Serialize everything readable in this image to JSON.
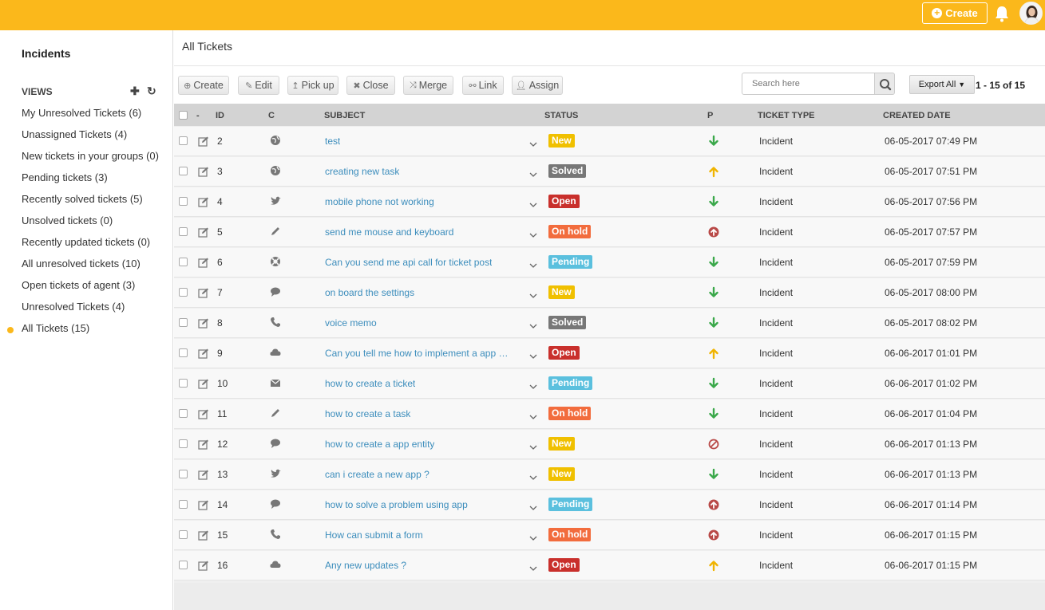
{
  "topbar": {
    "create_label": "Create",
    "accent": "#fbb81b"
  },
  "sidebar": {
    "title": "Incidents",
    "views_label": "VIEWS",
    "items": [
      {
        "label": "My Unresolved Tickets (6)"
      },
      {
        "label": "Unassigned Tickets (4)"
      },
      {
        "label": "New tickets in your groups (0)"
      },
      {
        "label": "Pending tickets (3)"
      },
      {
        "label": "Recently solved tickets (5)"
      },
      {
        "label": "Unsolved tickets (0)"
      },
      {
        "label": "Recently updated tickets (0)"
      },
      {
        "label": "All unresolved tickets (10)"
      },
      {
        "label": "Open tickets of agent (3)"
      },
      {
        "label": "Unresolved Tickets (4)"
      },
      {
        "label": "All Tickets (15)",
        "active": true
      }
    ]
  },
  "main": {
    "title": "All Tickets",
    "toolbar": {
      "create": "Create",
      "edit": "Edit",
      "pickup": "Pick up",
      "close": "Close",
      "merge": "Merge",
      "link": "Link",
      "assign": "Assign"
    },
    "search": {
      "placeholder": "Search here"
    },
    "export_label": "Export All",
    "pager": "1 - 15 of 15",
    "columns": {
      "dash": "-",
      "id": "ID",
      "c": "C",
      "subject": "SUBJECT",
      "status": "STATUS",
      "p": "P",
      "type": "TICKET TYPE",
      "created": "CREATED DATE"
    }
  },
  "status_colors": {
    "New": "#f0c000",
    "Solved": "#777777",
    "Open": "#c9302c",
    "On hold": "#f26c3d",
    "Pending": "#5bc0de"
  },
  "tickets": [
    {
      "id": "2",
      "channel": "globe-icon",
      "subject": "test",
      "status": "New",
      "priority": "low-arrow-down-icon",
      "type": "Incident",
      "created": "06-05-2017 07:49 PM"
    },
    {
      "id": "3",
      "channel": "globe-icon",
      "subject": "creating new task",
      "status": "Solved",
      "priority": "medium-arrow-up-icon",
      "type": "Incident",
      "created": "06-05-2017 07:51 PM"
    },
    {
      "id": "4",
      "channel": "twitter-icon",
      "subject": "mobile phone not working",
      "status": "Open",
      "priority": "low-arrow-down-icon",
      "type": "Incident",
      "created": "06-05-2017 07:56 PM"
    },
    {
      "id": "5",
      "channel": "pencil-icon",
      "subject": "send me mouse and keyboard",
      "status": "On hold",
      "priority": "high-circle-up-icon",
      "type": "Incident",
      "created": "06-05-2017 07:57 PM"
    },
    {
      "id": "6",
      "channel": "support-icon",
      "subject": "Can you send me api call for ticket post",
      "status": "Pending",
      "priority": "low-arrow-down-icon",
      "type": "Incident",
      "created": "06-05-2017 07:59 PM"
    },
    {
      "id": "7",
      "channel": "chat-icon",
      "subject": "on board the settings",
      "status": "New",
      "priority": "low-arrow-down-icon",
      "type": "Incident",
      "created": "06-05-2017 08:00 PM"
    },
    {
      "id": "8",
      "channel": "phone-icon",
      "subject": "voice memo",
      "status": "Solved",
      "priority": "low-arrow-down-icon",
      "type": "Incident",
      "created": "06-05-2017 08:02 PM"
    },
    {
      "id": "9",
      "channel": "cloud-icon",
      "subject": "Can you tell me how to implement a app …",
      "status": "Open",
      "priority": "medium-arrow-up-icon",
      "type": "Incident",
      "created": "06-06-2017 01:01 PM"
    },
    {
      "id": "10",
      "channel": "envelope-icon",
      "subject": "how to create a ticket",
      "status": "Pending",
      "priority": "low-arrow-down-icon",
      "type": "Incident",
      "created": "06-06-2017 01:02 PM"
    },
    {
      "id": "11",
      "channel": "pencil-icon",
      "subject": "how to create a task",
      "status": "On hold",
      "priority": "low-arrow-down-icon",
      "type": "Incident",
      "created": "06-06-2017 01:04 PM"
    },
    {
      "id": "12",
      "channel": "chat-icon",
      "subject": "how to create a app entity",
      "status": "New",
      "priority": "urgent-ban-icon",
      "type": "Incident",
      "created": "06-06-2017 01:13 PM"
    },
    {
      "id": "13",
      "channel": "twitter-icon",
      "subject": "can i create a new app ?",
      "status": "New",
      "priority": "low-arrow-down-icon",
      "type": "Incident",
      "created": "06-06-2017 01:13 PM"
    },
    {
      "id": "14",
      "channel": "chat-icon",
      "subject": "how to solve a problem using app",
      "status": "Pending",
      "priority": "high-circle-up-icon",
      "type": "Incident",
      "created": "06-06-2017 01:14 PM"
    },
    {
      "id": "15",
      "channel": "phone-icon",
      "subject": "How can submit a form",
      "status": "On hold",
      "priority": "high-circle-up-icon",
      "type": "Incident",
      "created": "06-06-2017 01:15 PM"
    },
    {
      "id": "16",
      "channel": "cloud-icon",
      "subject": "Any new updates ?",
      "status": "Open",
      "priority": "medium-arrow-up-icon",
      "type": "Incident",
      "created": "06-06-2017 01:15 PM"
    }
  ]
}
